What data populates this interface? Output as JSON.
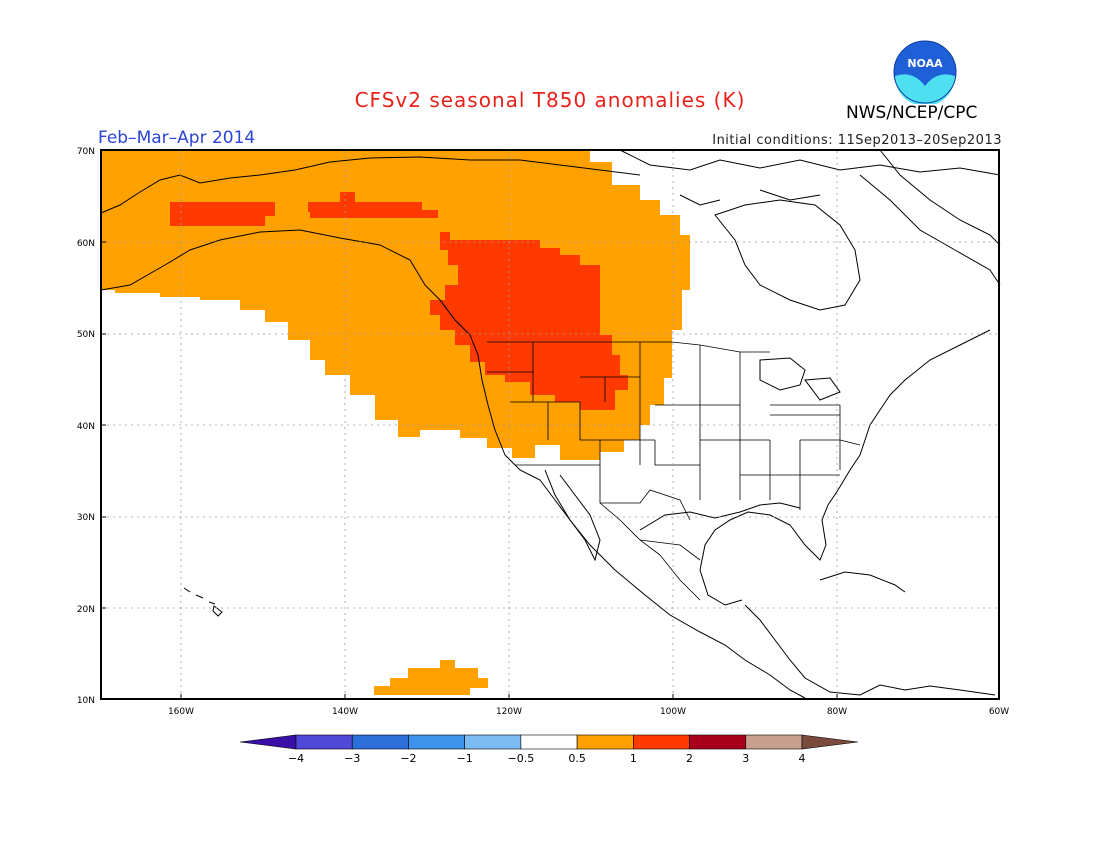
{
  "title": "CFSv2 seasonal T850 anomalies (K)",
  "season": "Feb–Mar–Apr 2014",
  "initial_conditions": "Initial conditions: 11Sep2013–20Sep2013",
  "agency": "NWS/NCEP/CPC",
  "logo_text": "NOAA",
  "map": {
    "lon_range": [
      -172,
      -60
    ],
    "lat_range": [
      10,
      70
    ],
    "lat_labels": [
      "10N",
      "20N",
      "30N",
      "40N",
      "50N",
      "60N",
      "70N"
    ],
    "lon_labels": [
      "160W",
      "140W",
      "120W",
      "100W",
      "80W",
      "60W"
    ]
  },
  "legend": {
    "ticks": [
      "−4",
      "−3",
      "−2",
      "−1",
      "−0.5",
      "0.5",
      "1",
      "2",
      "3",
      "4"
    ],
    "colors": [
      "#3a0fa8",
      "#5048d6",
      "#2c6fd8",
      "#3d93ea",
      "#7cbaf2",
      "#ffffff",
      "#ffa100",
      "#ff3a00",
      "#a8001a",
      "#c9a08e",
      "#7a4a3a"
    ]
  },
  "anomaly_colors": {
    "warm_0_5_to_1": "#ffa100",
    "warm_1_to_2": "#ff3a00"
  }
}
